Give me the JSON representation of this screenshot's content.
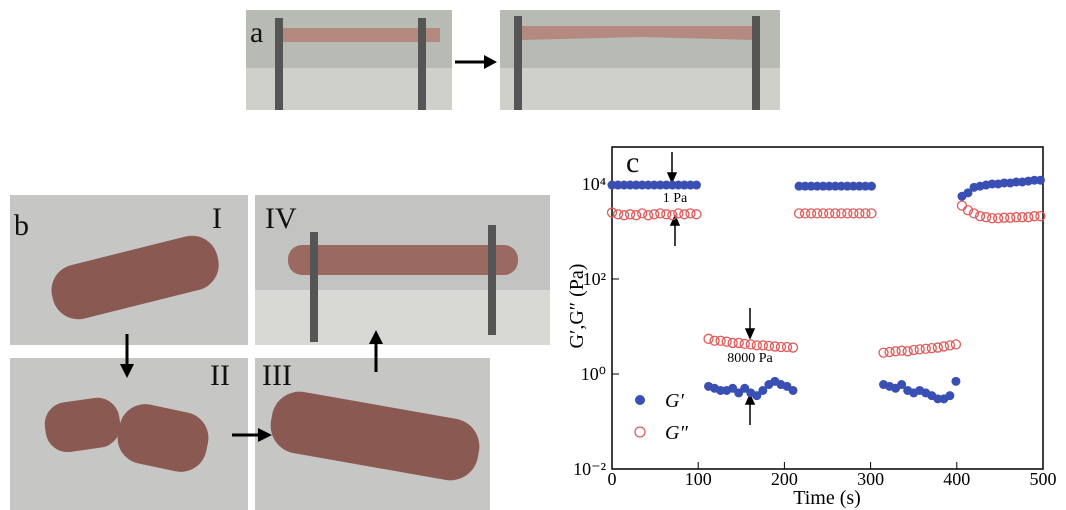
{
  "panels": {
    "a": "a",
    "b": "b",
    "c": "c",
    "photo_labels": [
      "I",
      "II",
      "III",
      "IV"
    ]
  },
  "chart_data": {
    "type": "scatter",
    "xlabel": "Time (s)",
    "ylabel": "G′,G″ (Pa)",
    "xlim": [
      0,
      500
    ],
    "xticks": [
      0,
      100,
      200,
      300,
      400,
      500
    ],
    "ylim": [
      0.01,
      60000
    ],
    "log_y": true,
    "yticks": [
      {
        "value": 0.01,
        "label": "10⁻²"
      },
      {
        "value": 1,
        "label": "10⁰"
      },
      {
        "value": 100,
        "label": "10²"
      },
      {
        "value": 10000,
        "label": "10⁴"
      }
    ],
    "annotations": [
      "1 Pa",
      "8000 Pa"
    ],
    "legend": "lower left",
    "x": [
      0,
      7,
      14,
      21,
      28,
      35,
      42,
      49,
      56,
      63,
      70,
      77,
      84,
      91,
      98,
      112,
      119,
      126,
      133,
      140,
      147,
      154,
      161,
      168,
      175,
      182,
      189,
      196,
      203,
      210,
      217,
      224,
      231,
      238,
      245,
      252,
      259,
      266,
      273,
      280,
      287,
      294,
      301,
      315,
      322,
      329,
      336,
      343,
      350,
      357,
      364,
      371,
      378,
      385,
      392,
      399,
      406,
      413,
      420,
      427,
      434,
      441,
      448,
      455,
      462,
      469,
      476,
      483,
      490,
      497
    ],
    "series": [
      {
        "name": "G′",
        "color": "#3a4fb4",
        "marker": "filled",
        "values": [
          9500,
          9500,
          9500,
          9500,
          9500,
          9500,
          9500,
          9500,
          9500,
          9500,
          9500,
          9500,
          9500,
          9500,
          9500,
          0.55,
          0.5,
          0.45,
          0.45,
          0.5,
          0.4,
          0.5,
          0.4,
          0.35,
          0.45,
          0.6,
          0.7,
          0.6,
          0.55,
          0.45,
          9000,
          9000,
          9000,
          9000,
          9000,
          9000,
          9000,
          9000,
          9000,
          9000,
          9000,
          9000,
          9000,
          0.6,
          0.55,
          0.5,
          0.6,
          0.45,
          0.4,
          0.45,
          0.4,
          0.35,
          0.3,
          0.3,
          0.35,
          0.7,
          5500,
          6500,
          8500,
          9000,
          9500,
          10000,
          10000,
          10500,
          10500,
          11000,
          11000,
          11500,
          12000,
          12000
        ]
      },
      {
        "name": "G″",
        "color": "#e05a5a",
        "marker": "open",
        "values": [
          2500,
          2300,
          2200,
          2300,
          2200,
          2400,
          2200,
          2300,
          2400,
          2300,
          2200,
          2400,
          2300,
          2400,
          2300,
          5.5,
          5,
          5,
          4.8,
          4.5,
          4.5,
          4.3,
          4.2,
          4,
          4,
          3.9,
          3.8,
          3.7,
          3.7,
          3.6,
          2400,
          2400,
          2400,
          2400,
          2400,
          2400,
          2400,
          2400,
          2400,
          2400,
          2400,
          2400,
          2400,
          2.8,
          2.9,
          3,
          3.1,
          3,
          3.2,
          3.3,
          3.4,
          3.5,
          3.6,
          3.8,
          4,
          4.2,
          3500,
          2800,
          2400,
          2100,
          2000,
          1900,
          1900,
          1950,
          1950,
          2000,
          2000,
          2000,
          2100,
          2100
        ]
      }
    ]
  }
}
